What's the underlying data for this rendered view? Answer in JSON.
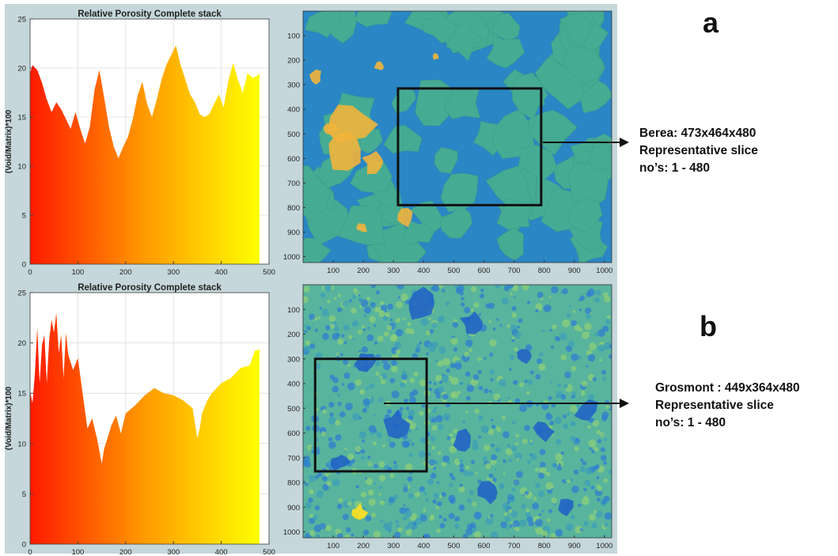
{
  "chart_data": [
    {
      "type": "area",
      "title": "Relative Porosity Complete stack",
      "ylabel": "(Void/Matrix)*100",
      "xlim": [
        0,
        500
      ],
      "ylim": [
        0,
        25
      ],
      "xticks": [
        0,
        100,
        200,
        300,
        400,
        500
      ],
      "yticks": [
        0,
        5,
        10,
        15,
        20,
        25
      ],
      "grid": true,
      "fill": "gradient red-orange-yellow",
      "x": [
        0,
        5,
        15,
        25,
        35,
        45,
        55,
        65,
        75,
        85,
        95,
        105,
        115,
        125,
        135,
        145,
        155,
        165,
        175,
        185,
        195,
        205,
        215,
        225,
        235,
        245,
        255,
        265,
        275,
        285,
        295,
        305,
        315,
        325,
        335,
        345,
        355,
        365,
        375,
        385,
        395,
        405,
        415,
        425,
        435,
        445,
        455,
        465,
        475,
        480
      ],
      "y": [
        19.5,
        20.3,
        19.8,
        18.5,
        16.8,
        15.5,
        16.5,
        15.8,
        14.8,
        13.8,
        15.5,
        13.8,
        12.3,
        14.0,
        17.8,
        19.8,
        17.0,
        14.0,
        12.0,
        10.8,
        12.0,
        13.0,
        14.8,
        17.2,
        18.6,
        16.3,
        15.0,
        16.8,
        18.8,
        20.3,
        21.3,
        22.3,
        20.3,
        18.8,
        17.3,
        16.5,
        15.3,
        15.0,
        15.3,
        16.3,
        17.3,
        16.0,
        18.8,
        20.5,
        18.8,
        17.5,
        19.5,
        19.0,
        19.2,
        19.4
      ]
    },
    {
      "type": "image",
      "xlim": [
        0,
        1024
      ],
      "ylim": [
        0,
        1024
      ],
      "xticks": [
        100,
        200,
        300,
        400,
        500,
        600,
        700,
        800,
        900,
        1000
      ],
      "yticks": [
        100,
        200,
        300,
        400,
        500,
        600,
        700,
        800,
        900,
        1000
      ],
      "box": {
        "x0": 315,
        "x1": 790,
        "y0": 315,
        "y1": 790
      },
      "colors": {
        "base": "#46ab93",
        "void": "#2a86c4",
        "grain": "#f0b43c"
      }
    },
    {
      "type": "area",
      "title": "Relative Porosity Complete stack",
      "ylabel": "(Void/Matrix)*100",
      "xlim": [
        0,
        500
      ],
      "ylim": [
        0,
        25
      ],
      "xticks": [
        0,
        100,
        200,
        300,
        400,
        500
      ],
      "yticks": [
        0,
        5,
        10,
        15,
        20,
        25
      ],
      "grid": true,
      "fill": "gradient red-orange-yellow",
      "x": [
        0,
        5,
        10,
        15,
        20,
        25,
        30,
        35,
        40,
        45,
        50,
        55,
        60,
        65,
        70,
        75,
        80,
        90,
        100,
        110,
        120,
        130,
        140,
        150,
        155,
        160,
        170,
        180,
        190,
        200,
        220,
        240,
        260,
        280,
        300,
        320,
        340,
        350,
        355,
        360,
        370,
        380,
        400,
        420,
        440,
        460,
        470,
        480
      ],
      "y": [
        15.2,
        14.0,
        16.8,
        21.5,
        16.0,
        19.8,
        20.8,
        16.0,
        20.3,
        22.3,
        21.0,
        23.0,
        19.0,
        20.8,
        16.5,
        21.0,
        18.8,
        17.3,
        18.5,
        15.0,
        11.5,
        12.5,
        10.5,
        8.0,
        9.5,
        10.2,
        11.8,
        12.8,
        11.0,
        13.0,
        13.8,
        14.8,
        15.5,
        15.0,
        14.8,
        14.3,
        13.5,
        10.5,
        11.5,
        13.0,
        14.2,
        15.0,
        16.0,
        16.5,
        17.5,
        17.8,
        19.2,
        19.4
      ]
    },
    {
      "type": "image",
      "xlim": [
        0,
        1024
      ],
      "ylim": [
        0,
        1024
      ],
      "xticks": [
        100,
        200,
        300,
        400,
        500,
        600,
        700,
        800,
        900,
        1000
      ],
      "yticks": [
        100,
        200,
        300,
        400,
        500,
        600,
        700,
        800,
        900,
        1000
      ],
      "box": {
        "x0": 40,
        "x1": 410,
        "y0": 300,
        "y1": 755
      },
      "colors": {
        "base": "#58b49c",
        "void": "#2f6fd0",
        "grain": "#f0dc2a"
      }
    }
  ],
  "labels": {
    "a": "a",
    "b": "b",
    "berea_line1": "Berea: 473x464x480",
    "berea_line2": "Representative slice",
    "berea_line3": "no’s: 1 - 480",
    "grosmont_line1": "Grosmont : 449x364x480",
    "grosmont_line2": "Representative slice",
    "grosmont_line3": "no’s: 1 - 480"
  }
}
